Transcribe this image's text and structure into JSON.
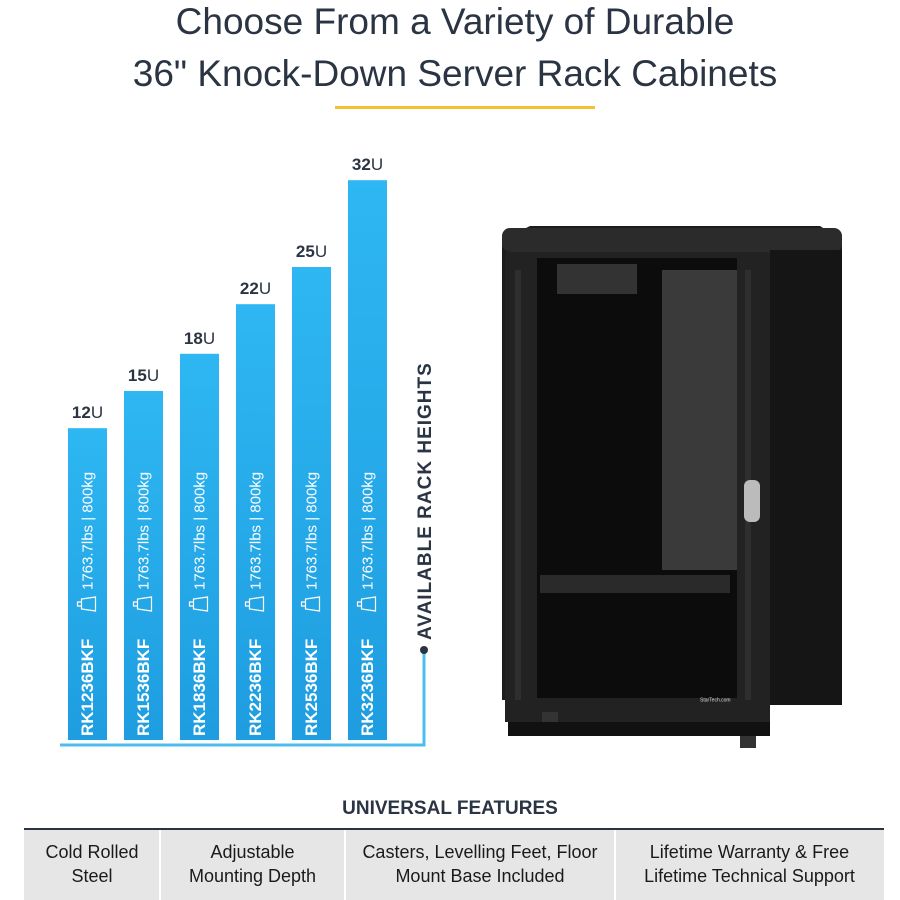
{
  "header": {
    "title_lines": [
      "Choose From a Variety of Durable",
      "36\" Knock-Down Server Rack Cabinets"
    ]
  },
  "racks": {
    "label": "AVAILABLE RACK HEIGHTS",
    "items": [
      {
        "height": 12,
        "unit": "U",
        "model": "RK1236BKF",
        "capacity": "1763.7lbs | 800kg"
      },
      {
        "height": 15,
        "unit": "U",
        "model": "RK1536BKF",
        "capacity": "1763.7lbs | 800kg"
      },
      {
        "height": 18,
        "unit": "U",
        "model": "RK1836BKF",
        "capacity": "1763.7lbs | 800kg"
      },
      {
        "height": 22,
        "unit": "U",
        "model": "RK2236BKF",
        "capacity": "1763.7lbs | 800kg"
      },
      {
        "height": 25,
        "unit": "U",
        "model": "RK2536BKF",
        "capacity": "1763.7lbs | 800kg"
      },
      {
        "height": 32,
        "unit": "U",
        "model": "RK3236BKF",
        "capacity": "1763.7lbs | 800kg"
      }
    ]
  },
  "product": {
    "brand": "StarTech.com"
  },
  "features": {
    "title": "UNIVERSAL FEATURES",
    "items": [
      [
        "Cold Rolled",
        "Steel"
      ],
      [
        "Adjustable",
        "Mounting Depth"
      ],
      [
        "Casters, Levelling Feet, Floor",
        "Mount Base Included"
      ],
      [
        "Lifetime Warranty & Free",
        "Lifetime Technical Support"
      ]
    ]
  }
}
